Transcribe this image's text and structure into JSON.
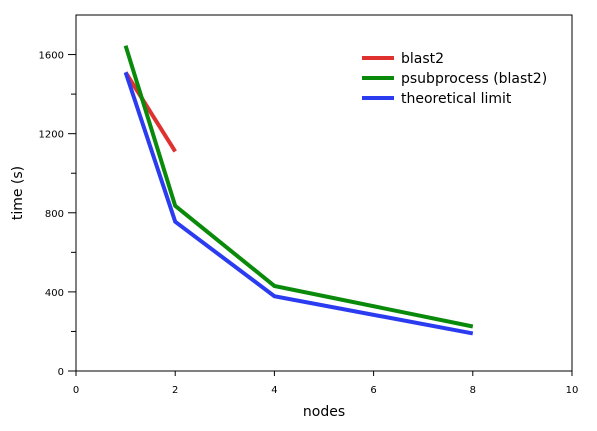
{
  "chart_data": {
    "type": "line",
    "title": "",
    "xlabel": "nodes",
    "ylabel": "time (s)",
    "xlim": [
      0,
      10
    ],
    "ylim": [
      0,
      1800
    ],
    "x_ticks": [
      0,
      2,
      4,
      6,
      8,
      10
    ],
    "x_tick_labels": [
      "0",
      "2",
      "4",
      "6",
      "8",
      "10"
    ],
    "y_major_ticks": [
      0,
      400,
      800,
      1200,
      1600
    ],
    "y_tick_labels": [
      "0",
      "400",
      "800",
      "1200",
      "1600"
    ],
    "y_minor_ticks": [
      200,
      600,
      1000,
      1400
    ],
    "grid": false,
    "legend_position": "top-right",
    "series": [
      {
        "name": "blast2",
        "color": "#e03131",
        "x": [
          1,
          2
        ],
        "y": [
          1510,
          1110
        ]
      },
      {
        "name": "psubprocess (blast2)",
        "color": "#0a8a0a",
        "x": [
          1,
          2,
          4,
          8
        ],
        "y": [
          1645,
          835,
          430,
          225
        ]
      },
      {
        "name": "theoretical limit",
        "color": "#2b3cf0",
        "x": [
          1,
          2,
          4,
          8
        ],
        "y": [
          1510,
          755,
          378,
          190
        ]
      }
    ]
  }
}
